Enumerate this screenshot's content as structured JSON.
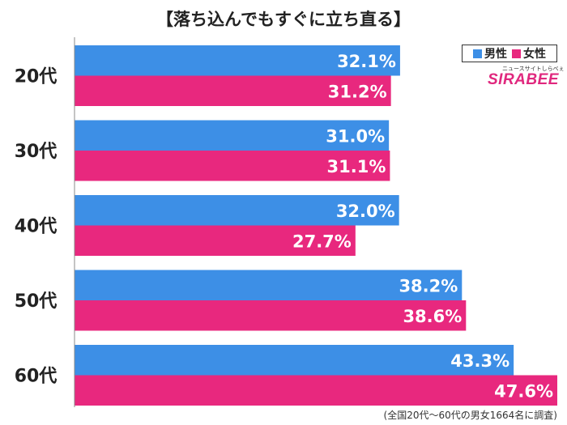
{
  "title": "【落ち込んでもすぐに立ち直る】",
  "legend": {
    "male": "男性",
    "female": "女性"
  },
  "logo": {
    "tagline": "ニュースサイトしらべぇ",
    "name": "SIRABEE"
  },
  "footnote": "(全国20代〜60代の男女1664名に調査)",
  "colors": {
    "male": "#3d8fe6",
    "female": "#e8287e",
    "axis": "#888888",
    "text": "#222222"
  },
  "chart_data": {
    "type": "bar",
    "orientation": "horizontal",
    "categories": [
      "20代",
      "30代",
      "40代",
      "50代",
      "60代"
    ],
    "series": [
      {
        "name": "男性",
        "values": [
          32.1,
          31.0,
          32.0,
          38.2,
          43.3
        ],
        "labels": [
          "32.1%",
          "31.0%",
          "32.0%",
          "38.2%",
          "43.3%"
        ]
      },
      {
        "name": "女性",
        "values": [
          31.2,
          31.1,
          27.7,
          38.6,
          47.6
        ],
        "labels": [
          "31.2%",
          "31.1%",
          "27.7%",
          "38.6%",
          "47.6%"
        ]
      }
    ],
    "title": "【落ち込んでもすぐに立ち直る】",
    "xlabel": "",
    "ylabel": "",
    "xlim": [
      0,
      47.6
    ],
    "grid": false,
    "legend_position": "top-right"
  }
}
